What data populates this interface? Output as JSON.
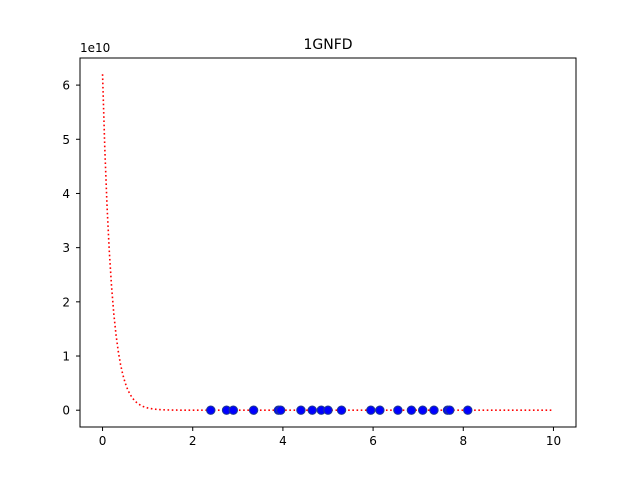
{
  "chart_data": {
    "type": "scatter",
    "title": "1GNFD",
    "xlabel": "",
    "ylabel": "",
    "y_scale_label": "1e10",
    "xlim": [
      -0.5,
      10.5
    ],
    "ylim": [
      -0.31,
      6.5
    ],
    "xticks": [
      0,
      2,
      4,
      6,
      8,
      10
    ],
    "xtick_labels": [
      "0",
      "2",
      "4",
      "6",
      "8",
      "10"
    ],
    "yticks": [
      0,
      1,
      2,
      3,
      4,
      5,
      6
    ],
    "ytick_labels": [
      "0",
      "1",
      "2",
      "3",
      "4",
      "5",
      "6"
    ],
    "grid": false,
    "legend": "none",
    "series": [
      {
        "kind": "scatter",
        "color": "#0000ff",
        "edge_color": "#1f3a93",
        "x": [
          2.4,
          2.75,
          2.9,
          3.35,
          3.9,
          3.95,
          4.4,
          4.65,
          4.85,
          5.0,
          5.3,
          5.95,
          6.15,
          6.55,
          6.85,
          7.1,
          7.35,
          7.65,
          7.7,
          8.1
        ],
        "y": [
          0,
          0,
          0,
          0,
          0,
          0,
          0,
          0,
          0,
          0,
          0,
          0,
          0,
          0,
          0,
          0,
          0,
          0,
          0,
          0
        ]
      },
      {
        "kind": "line",
        "color": "#ff0000",
        "dash": "dotted",
        "formula": "6.2 * exp(-5 * x)",
        "x_range": [
          0,
          10
        ],
        "samples": 200
      }
    ]
  }
}
